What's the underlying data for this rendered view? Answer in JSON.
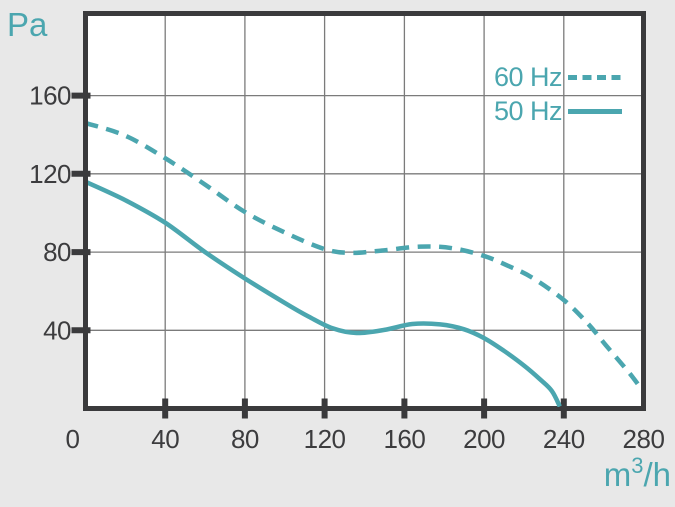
{
  "labels": {
    "y_unit": "Pa",
    "x_unit_base": "m",
    "x_unit_sup": "3",
    "x_unit_rest": "/h"
  },
  "colors": {
    "accent": "#4ba6af",
    "axis": "#3a3a3c",
    "grid": "#7b7b7b",
    "tick_text": "#3c3c3e",
    "background": "#e8e8e8",
    "plot_background": "#ffffff"
  },
  "chart_data": {
    "type": "line",
    "title": "",
    "xlabel": "m³/h",
    "ylabel": "Pa",
    "xlim": [
      0,
      280
    ],
    "ylim": [
      0,
      202
    ],
    "x_ticks": [
      0,
      40,
      80,
      120,
      160,
      200,
      240,
      280
    ],
    "y_ticks": [
      40,
      80,
      120,
      160
    ],
    "grid": true,
    "legend_position": "top-right",
    "series": [
      {
        "name": "60 Hz",
        "style": "dashed",
        "points": [
          [
            0,
            146
          ],
          [
            20,
            139.5
          ],
          [
            40,
            128
          ],
          [
            60,
            114.5
          ],
          [
            80,
            100.5
          ],
          [
            100,
            90
          ],
          [
            120,
            81.5
          ],
          [
            133,
            79.6
          ],
          [
            148,
            80.7
          ],
          [
            168,
            82.8
          ],
          [
            184,
            82
          ],
          [
            200,
            78
          ],
          [
            212,
            73
          ],
          [
            224,
            67
          ],
          [
            240,
            55.5
          ],
          [
            252,
            43.5
          ],
          [
            261,
            32.5
          ],
          [
            273,
            18
          ],
          [
            280,
            8.5
          ]
        ]
      },
      {
        "name": "50 Hz",
        "style": "solid",
        "points": [
          [
            0,
            116
          ],
          [
            20,
            106.5
          ],
          [
            40,
            95
          ],
          [
            60,
            80
          ],
          [
            80,
            66.5
          ],
          [
            100,
            54
          ],
          [
            112,
            47
          ],
          [
            124,
            41
          ],
          [
            136,
            38.6
          ],
          [
            150,
            40.2
          ],
          [
            164,
            43.2
          ],
          [
            178,
            43
          ],
          [
            190,
            40.5
          ],
          [
            200,
            36
          ],
          [
            210,
            29.5
          ],
          [
            220,
            22
          ],
          [
            228,
            15
          ],
          [
            234,
            9
          ],
          [
            238,
            1
          ]
        ]
      }
    ]
  }
}
